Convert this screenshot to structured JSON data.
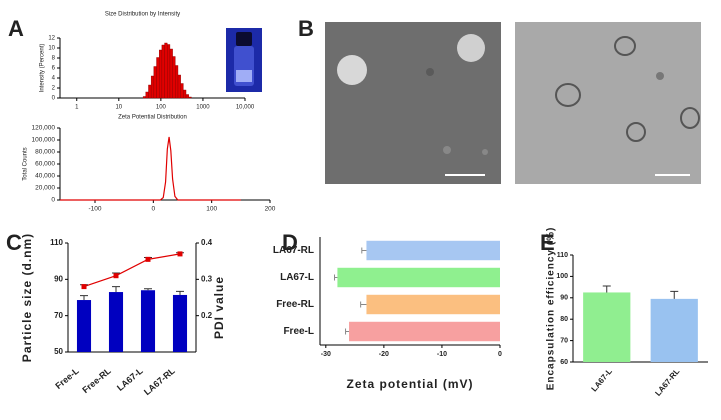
{
  "panels": [
    "A",
    "B",
    "C",
    "D",
    "E"
  ],
  "chart_data": [
    {
      "type": "histogram",
      "title": "Size Distribution by Intensity",
      "xlabel": "Zeta Potential Distribution",
      "ylabel": "Intensity (Percent)",
      "bins": [
        37.84,
        43.82,
        50.75,
        58.77,
        68.06,
        78.82,
        91.28,
        105.7,
        122.4,
        141.8,
        164.2,
        190.1,
        220.2,
        255.0,
        295.3,
        342.0,
        396.1,
        458.7,
        531.2
      ],
      "values": [
        0.3,
        1.2,
        2.6,
        4.4,
        6.3,
        8.1,
        9.6,
        10.6,
        11.0,
        10.7,
        9.8,
        8.3,
        6.5,
        4.6,
        2.9,
        1.6,
        0.7,
        0.2
      ],
      "color": "#e00000",
      "xscale": "log",
      "xlim": [
        0.4,
        10000
      ],
      "xticks": [
        1,
        10,
        100,
        1000,
        {
          "value": 10000,
          "label": "10,000"
        }
      ],
      "ylim": [
        0,
        12
      ],
      "yticks": [
        0,
        2,
        4,
        6,
        8,
        10,
        12
      ]
    },
    {
      "type": "line",
      "ylabel": "Total Counts",
      "x": [
        -160,
        -100,
        0,
        12,
        17,
        21,
        24,
        27,
        30,
        33,
        37,
        42,
        60,
        150
      ],
      "values": [
        0,
        0,
        0,
        0,
        4000,
        30000,
        85000,
        105000,
        82000,
        35000,
        6000,
        0,
        0,
        0
      ],
      "color": "#e00000",
      "xlim": [
        -160,
        200
      ],
      "xticks": [
        -100,
        0,
        100,
        200
      ],
      "ylim": [
        0,
        120000
      ],
      "yticks": [
        0,
        {
          "value": 20000,
          "label": "20,000"
        },
        {
          "value": 40000,
          "label": "40,000"
        },
        {
          "value": 60000,
          "label": "60,000"
        },
        {
          "value": 80000,
          "label": "80,000"
        },
        {
          "value": 100000,
          "label": "100,000"
        },
        {
          "value": 120000,
          "label": "120,000"
        }
      ]
    },
    {
      "type": "combo",
      "ylabel": "Particle size (d.nm)",
      "y2label": "PDI value",
      "categories": [
        "Free-L",
        "Free-RL",
        "LA67-L",
        "LA67-RL"
      ],
      "ylim": [
        50,
        110
      ],
      "yticks": [
        50,
        70,
        90,
        110
      ],
      "y2lim": [
        0.1,
        0.4
      ],
      "y2ticks": [
        0.2,
        0.3,
        0.4
      ],
      "series": [
        {
          "type": "bar",
          "axis": "y2",
          "color": "#0000c0",
          "values": [
            0.243,
            0.265,
            0.27,
            0.257
          ],
          "errors": [
            0.012,
            0.015,
            0.004,
            0.01
          ]
        },
        {
          "type": "line",
          "color": "#e00000",
          "values": [
            86,
            92,
            101,
            104
          ],
          "errors": [
            1,
            1.5,
            1,
            0.6
          ]
        }
      ]
    },
    {
      "type": "bar",
      "orientation": "horizontal",
      "xlabel": "Zeta potential (mV)",
      "categories": [
        "LA67-RL",
        "LA67-L",
        "Free-RL",
        "Free-L"
      ],
      "values": [
        -23,
        -28,
        -23,
        -26
      ],
      "errors": [
        0.8,
        0.5,
        1,
        0.6
      ],
      "colors": [
        "#a7c7f2",
        "#8ff08f",
        "#fbbf80",
        "#f7a0a0"
      ],
      "xlim": [
        -31,
        0
      ],
      "xticks": [
        -30,
        -20,
        -10,
        0
      ]
    },
    {
      "type": "bar",
      "ylabel": "Encapsulation efficiency (%)",
      "categories": [
        "LA67-L",
        "LA67-RL"
      ],
      "values": [
        92.5,
        89.5
      ],
      "errors": [
        3,
        3.5
      ],
      "colors": [
        "#90ee90",
        "#99c2f0"
      ],
      "ylim": [
        60,
        110
      ],
      "yticks": [
        60,
        70,
        80,
        90,
        100,
        110
      ]
    }
  ]
}
